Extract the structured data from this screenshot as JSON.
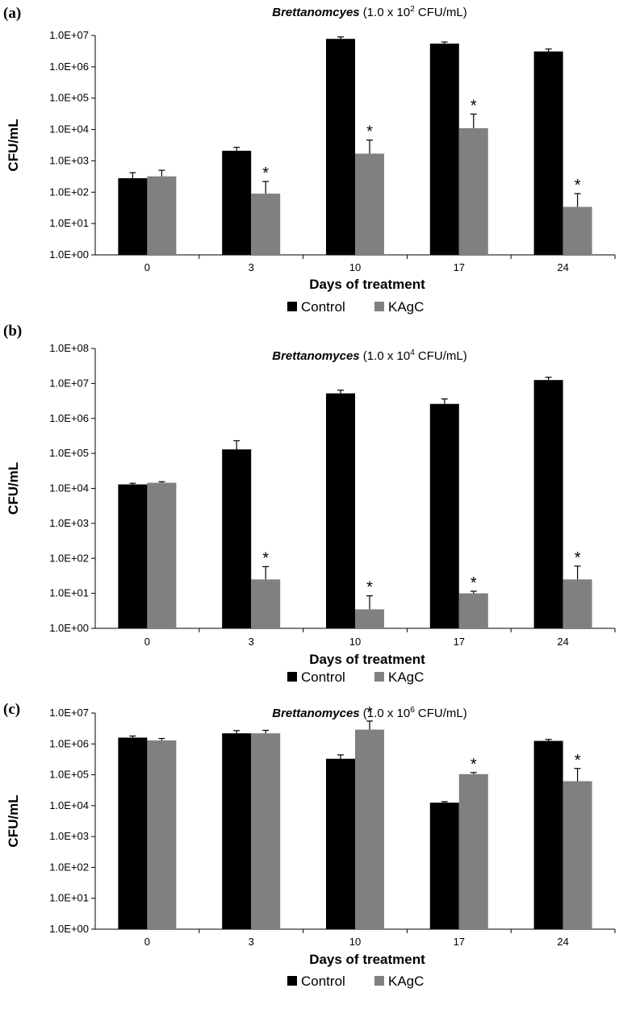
{
  "chart_data": [
    {
      "panel": "(a)",
      "type": "bar",
      "title_italic": "Brettanomcyes",
      "title_rest_prefix": " (1.0 x 10",
      "title_sup": "2",
      "title_rest_suffix": " CFU/mL)",
      "xlabel": "Days of treatment",
      "ylabel": "CFU/mL",
      "yscale": "log",
      "ylim_exp": [
        0,
        7
      ],
      "ytick_labels": [
        "1.0E+00",
        "1.0E+01",
        "1.0E+02",
        "1.0E+03",
        "1.0E+04",
        "1.0E+05",
        "1.0E+06",
        "1.0E+07"
      ],
      "categories": [
        "0",
        "3",
        "10",
        "17",
        "24"
      ],
      "series": [
        {
          "name": "Control",
          "color": "#000000",
          "values": [
            280,
            2100,
            7800000,
            5500000,
            3100000
          ],
          "error_upper": [
            420,
            2700,
            9000000,
            6200000,
            3700000
          ]
        },
        {
          "name": "KAgC",
          "color": "#808080",
          "values": [
            320,
            90,
            1700,
            11000,
            34
          ],
          "error_upper": [
            500,
            220,
            4600,
            31000,
            90
          ]
        }
      ],
      "significance": [
        {
          "series": "KAgC",
          "index": 1,
          "label": "*"
        },
        {
          "series": "KAgC",
          "index": 2,
          "label": "*"
        },
        {
          "series": "KAgC",
          "index": 3,
          "label": "*"
        },
        {
          "series": "KAgC",
          "index": 4,
          "label": "*"
        }
      ],
      "legend": [
        "Control",
        "KAgC"
      ]
    },
    {
      "panel": "(b)",
      "type": "bar",
      "title_italic": "Brettanomyces",
      "title_rest_prefix": " (1.0 x 10",
      "title_sup": "4",
      "title_rest_suffix": " CFU/mL)",
      "xlabel": "Days of  treatment",
      "ylabel": "CFU/mL",
      "yscale": "log",
      "ylim_exp": [
        0,
        8
      ],
      "ytick_labels": [
        "1.0E+00",
        "1.0E+01",
        "1.0E+02",
        "1.0E+03",
        "1.0E+04",
        "1.0E+05",
        "1.0E+06",
        "1.0E+07",
        "1.0E+08"
      ],
      "categories": [
        "0",
        "3",
        "10",
        "17",
        "24"
      ],
      "series": [
        {
          "name": "Control",
          "color": "#000000",
          "values": [
            13000,
            130000,
            5200000,
            2600000,
            12500000
          ],
          "error_upper": [
            14000,
            230000,
            6400000,
            3600000,
            15000000
          ]
        },
        {
          "name": "KAgC",
          "color": "#808080",
          "values": [
            14500,
            25,
            3.5,
            10,
            25
          ],
          "error_upper": [
            15500,
            58,
            8.5,
            11.5,
            60
          ]
        }
      ],
      "significance": [
        {
          "series": "KAgC",
          "index": 1,
          "label": "*"
        },
        {
          "series": "KAgC",
          "index": 2,
          "label": "*"
        },
        {
          "series": "KAgC",
          "index": 3,
          "label": "*"
        },
        {
          "series": "KAgC",
          "index": 4,
          "label": "*"
        }
      ],
      "legend": [
        "Control",
        "KAgC"
      ]
    },
    {
      "panel": "(c)",
      "type": "bar",
      "title_italic": "Brettanomyces",
      "title_rest_prefix": " (1.0 x 10",
      "title_sup": "6",
      "title_rest_suffix": " CFU/mL)",
      "xlabel": "Days of treatment",
      "ylabel": "CFU/mL",
      "yscale": "log",
      "ylim_exp": [
        0,
        7
      ],
      "ytick_labels": [
        "1.0E+00",
        "1.0E+01",
        "1.0E+02",
        "1.0E+03",
        "1.0E+04",
        "1.0E+05",
        "1.0E+06",
        "1.0E+07"
      ],
      "categories": [
        "0",
        "3",
        "10",
        "17",
        "24"
      ],
      "series": [
        {
          "name": "Control",
          "color": "#000000",
          "values": [
            1600000,
            2200000,
            330000,
            12500,
            1250000
          ],
          "error_upper": [
            1800000,
            2700000,
            440000,
            13500,
            1400000
          ]
        },
        {
          "name": "KAgC",
          "color": "#808080",
          "values": [
            1300000,
            2200000,
            2900000,
            105000,
            62000
          ],
          "error_upper": [
            1500000,
            2750000,
            5500000,
            118000,
            160000
          ]
        }
      ],
      "significance": [
        {
          "series": "KAgC",
          "index": 2,
          "label": "*"
        },
        {
          "series": "KAgC",
          "index": 3,
          "label": "*"
        },
        {
          "series": "KAgC",
          "index": 4,
          "label": "*"
        }
      ],
      "legend": [
        "Control",
        "KAgC"
      ]
    }
  ]
}
